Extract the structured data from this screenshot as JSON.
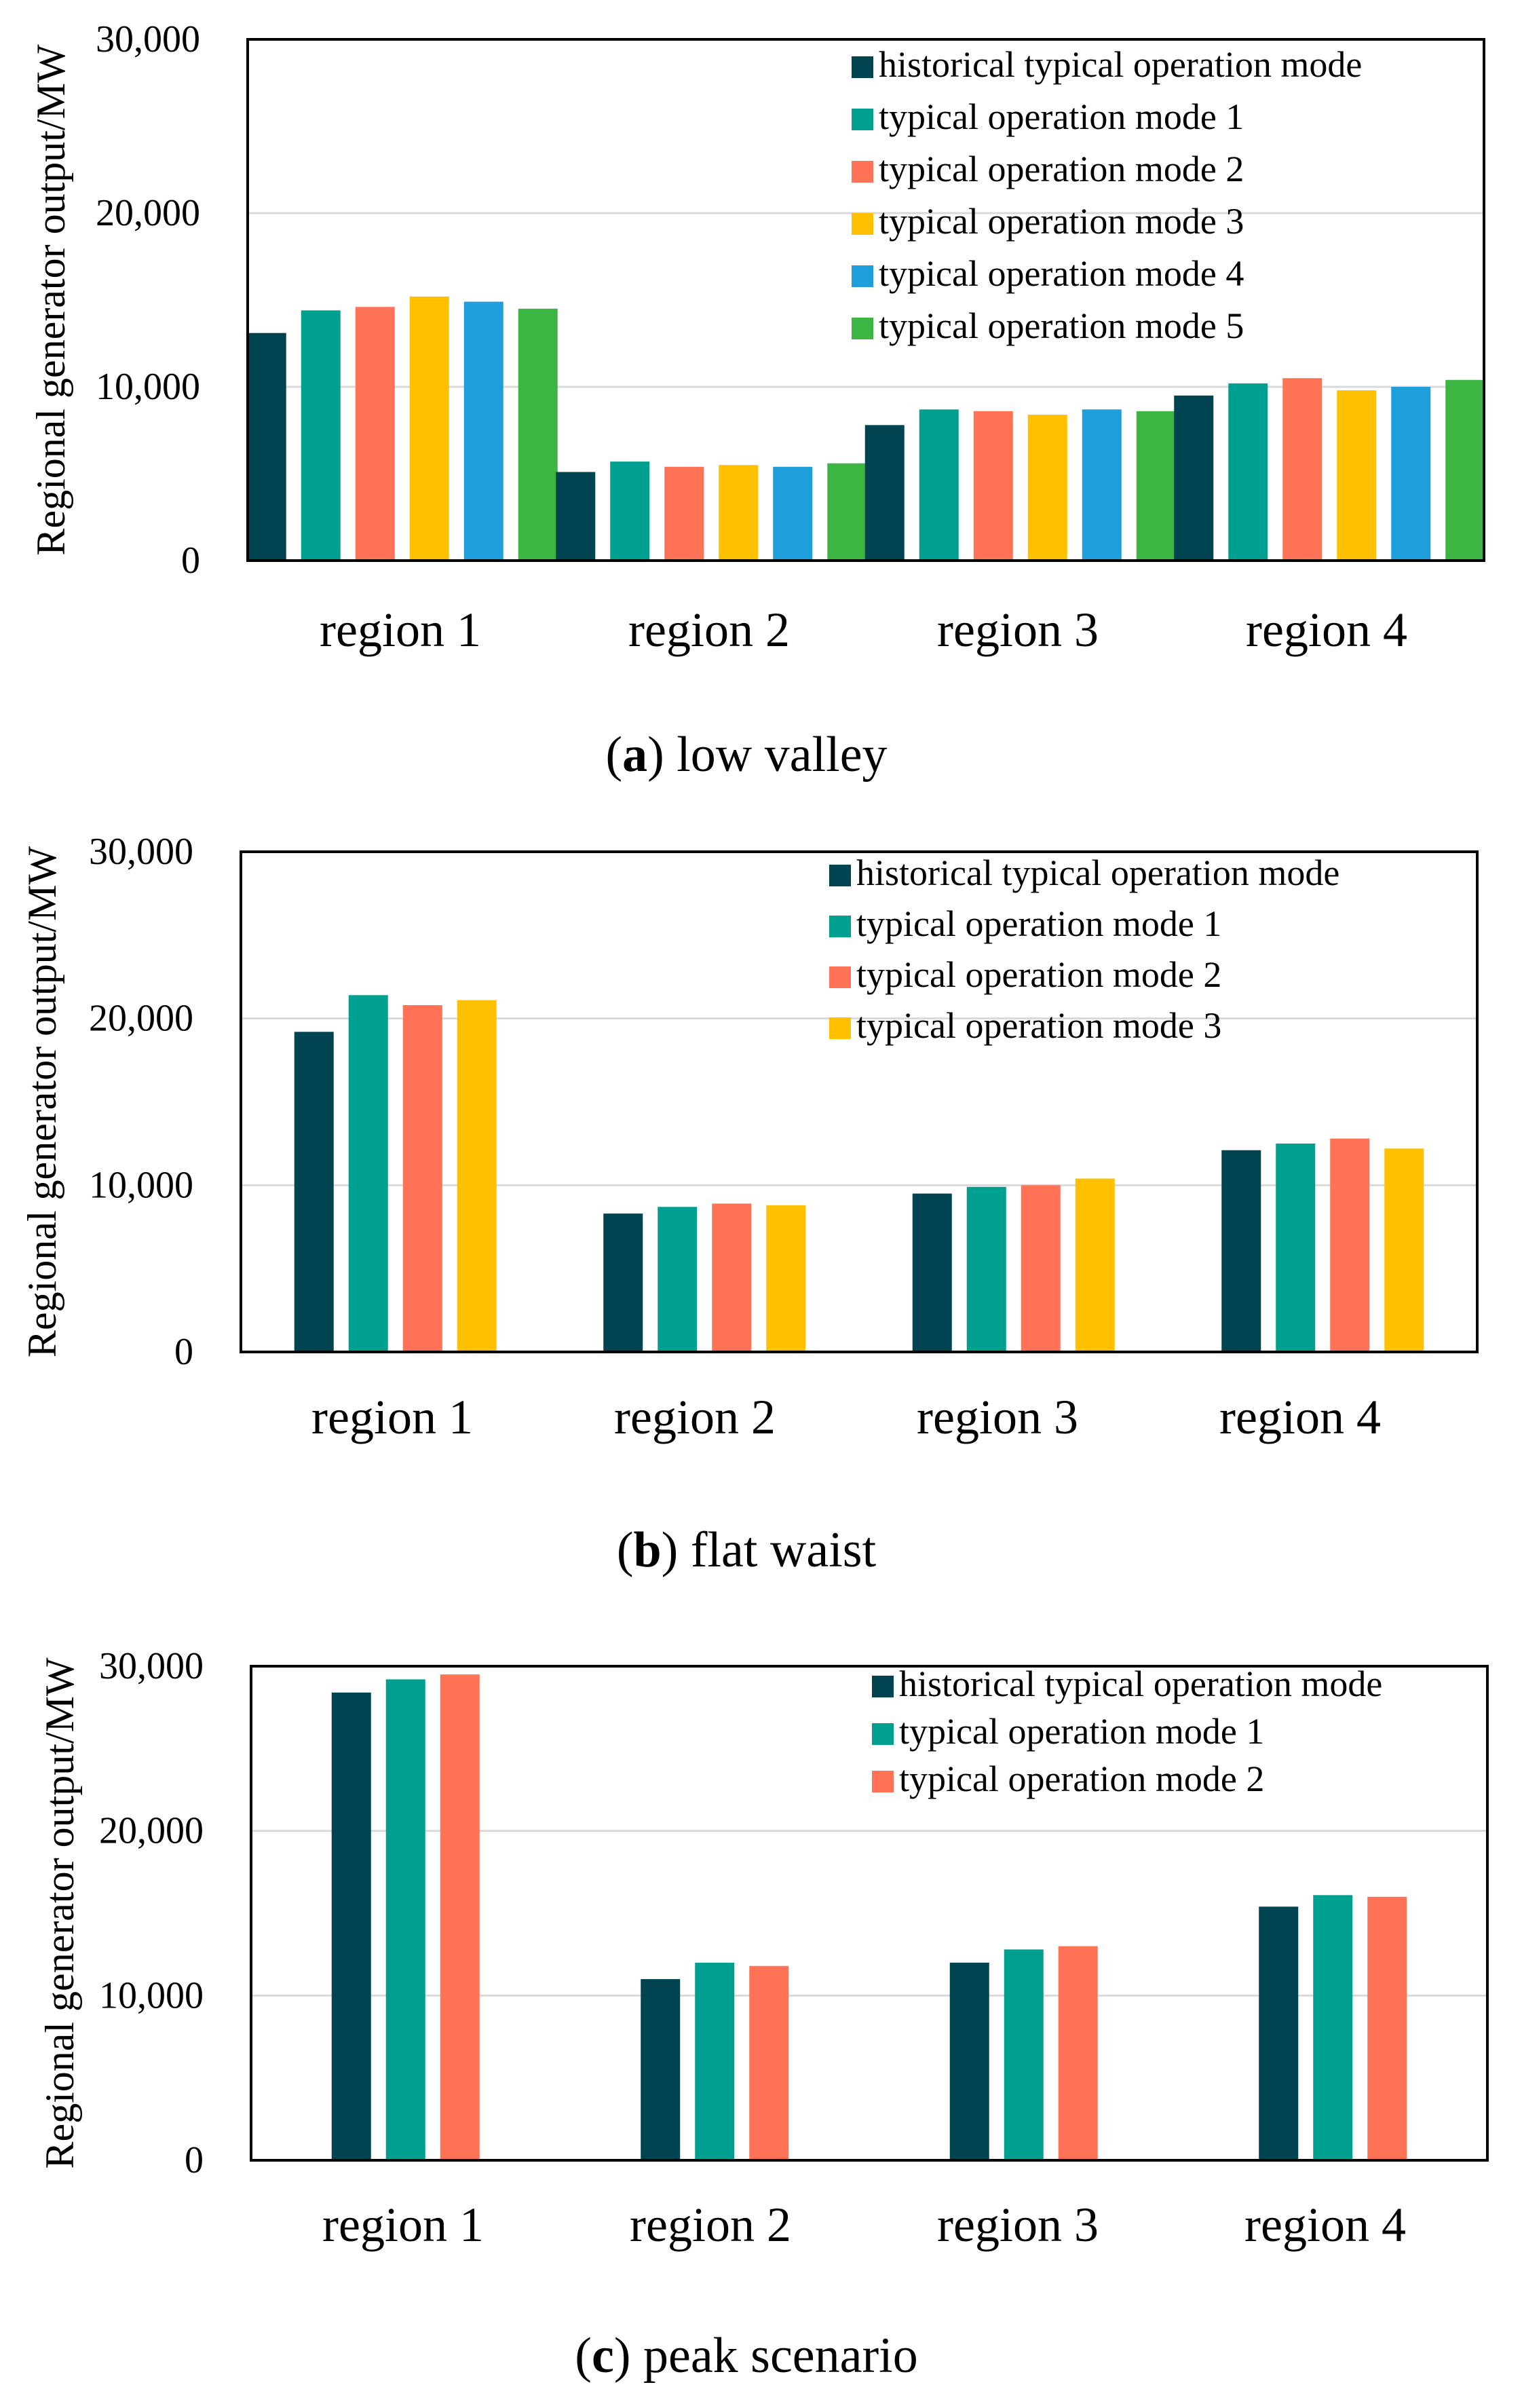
{
  "series_colors": {
    "historical": "#004452",
    "mode1": "#00A090",
    "mode2": "#FF7256",
    "mode3": "#FFC000",
    "mode4": "#1F9EDC",
    "mode5": "#3DB543"
  },
  "chart_data": [
    {
      "type": "bar",
      "panel": "a",
      "caption_letter": "a",
      "caption_text": "low valley",
      "title": "(a) low valley",
      "ylabel": "Regional generator output/MW",
      "xlabel": "",
      "ylim": [
        0,
        30000
      ],
      "yticks": [
        0,
        10000,
        20000,
        30000
      ],
      "ytick_labels": [
        "0",
        "10,000",
        "20,000",
        "30,000"
      ],
      "grid": true,
      "legend_position": "top-right",
      "categories": [
        "region 1",
        "region 2",
        "region 3",
        "region 4"
      ],
      "series": [
        {
          "key": "historical",
          "name": "historical typical operation mode",
          "values": [
            13100,
            5100,
            7800,
            9500
          ]
        },
        {
          "key": "mode1",
          "name": "typical operation mode 1",
          "values": [
            14400,
            5700,
            8700,
            10200
          ]
        },
        {
          "key": "mode2",
          "name": "typical operation mode 2",
          "values": [
            14600,
            5400,
            8600,
            10500
          ]
        },
        {
          "key": "mode3",
          "name": "typical operation mode 3",
          "values": [
            15200,
            5500,
            8400,
            9800
          ]
        },
        {
          "key": "mode4",
          "name": "typical operation mode 4",
          "values": [
            14900,
            5400,
            8700,
            10000
          ]
        },
        {
          "key": "mode5",
          "name": "typical operation mode 5",
          "values": [
            14500,
            5600,
            8600,
            10400
          ]
        }
      ]
    },
    {
      "type": "bar",
      "panel": "b",
      "caption_letter": "b",
      "caption_text": "flat waist",
      "title": "(b) flat waist",
      "ylabel": "Regional generator output/MW",
      "xlabel": "",
      "ylim": [
        0,
        30000
      ],
      "yticks": [
        0,
        10000,
        20000,
        30000
      ],
      "ytick_labels": [
        "0",
        "10,000",
        "20,000",
        "30,000"
      ],
      "grid": true,
      "legend_position": "top-right",
      "categories": [
        "region 1",
        "region 2",
        "region 3",
        "region 4"
      ],
      "series": [
        {
          "key": "historical",
          "name": "historical typical operation mode",
          "values": [
            19200,
            8300,
            9500,
            12100
          ]
        },
        {
          "key": "mode1",
          "name": "typical operation mode 1",
          "values": [
            21400,
            8700,
            9900,
            12500
          ]
        },
        {
          "key": "mode2",
          "name": "typical operation mode 2",
          "values": [
            20800,
            8900,
            10000,
            12800
          ]
        },
        {
          "key": "mode3",
          "name": "typical operation mode 3",
          "values": [
            21100,
            8800,
            10400,
            12200
          ]
        }
      ]
    },
    {
      "type": "bar",
      "panel": "c",
      "caption_letter": "c",
      "caption_text": "peak scenario",
      "title": "(c) peak scenario",
      "ylabel": "Regional generator output/MW",
      "xlabel": "",
      "ylim": [
        0,
        30000
      ],
      "yticks": [
        0,
        10000,
        20000,
        30000
      ],
      "ytick_labels": [
        "0",
        "10,000",
        "20,000",
        "30,000"
      ],
      "grid": true,
      "legend_position": "top-right",
      "categories": [
        "region 1",
        "region 2",
        "region 3",
        "region 4"
      ],
      "series": [
        {
          "key": "historical",
          "name": "historical typical operation mode",
          "values": [
            28400,
            11000,
            12000,
            15400
          ]
        },
        {
          "key": "mode1",
          "name": "typical operation mode 1",
          "values": [
            29200,
            12000,
            12800,
            16100
          ]
        },
        {
          "key": "mode2",
          "name": "typical operation mode 2",
          "values": [
            29500,
            11800,
            13000,
            16000
          ]
        }
      ]
    }
  ]
}
